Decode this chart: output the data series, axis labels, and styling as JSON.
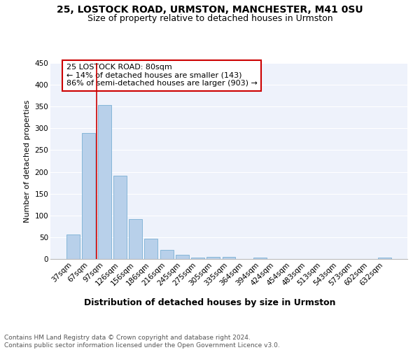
{
  "title1": "25, LOSTOCK ROAD, URMSTON, MANCHESTER, M41 0SU",
  "title2": "Size of property relative to detached houses in Urmston",
  "xlabel": "Distribution of detached houses by size in Urmston",
  "ylabel": "Number of detached properties",
  "categories": [
    "37sqm",
    "67sqm",
    "97sqm",
    "126sqm",
    "156sqm",
    "186sqm",
    "216sqm",
    "245sqm",
    "275sqm",
    "305sqm",
    "335sqm",
    "364sqm",
    "394sqm",
    "424sqm",
    "454sqm",
    "483sqm",
    "513sqm",
    "543sqm",
    "573sqm",
    "602sqm",
    "632sqm"
  ],
  "values": [
    57,
    290,
    353,
    191,
    92,
    47,
    21,
    10,
    4,
    5,
    5,
    0,
    4,
    0,
    0,
    0,
    0,
    0,
    0,
    0,
    4
  ],
  "bar_color": "#b8d0ea",
  "bar_edge_color": "#7aafd4",
  "vline_x": 1.5,
  "vline_color": "#cc0000",
  "annotation_text": "25 LOSTOCK ROAD: 80sqm\n← 14% of detached houses are smaller (143)\n86% of semi-detached houses are larger (903) →",
  "annotation_box_color": "#ffffff",
  "annotation_box_edge": "#cc0000",
  "ylim": [
    0,
    450
  ],
  "yticks": [
    0,
    50,
    100,
    150,
    200,
    250,
    300,
    350,
    400,
    450
  ],
  "footer_text": "Contains HM Land Registry data © Crown copyright and database right 2024.\nContains public sector information licensed under the Open Government Licence v3.0.",
  "bg_color": "#ffffff",
  "plot_bg_color": "#eef2fb",
  "grid_color": "#ffffff",
  "title1_fontsize": 10,
  "title2_fontsize": 9,
  "xlabel_fontsize": 9,
  "ylabel_fontsize": 8,
  "tick_fontsize": 7.5,
  "annotation_fontsize": 8,
  "footer_fontsize": 6.5
}
